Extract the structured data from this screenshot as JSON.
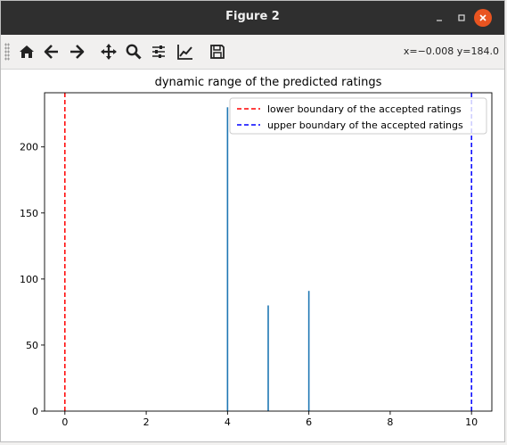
{
  "window": {
    "title": "Figure 2",
    "minimize_icon": "minimize-icon",
    "maximize_icon": "maximize-icon",
    "close_icon": "close-icon"
  },
  "toolbar": {
    "buttons": [
      {
        "name": "home-button",
        "icon": "home-icon"
      },
      {
        "name": "back-button",
        "icon": "arrow-left-icon"
      },
      {
        "name": "forward-button",
        "icon": "arrow-right-icon"
      },
      {
        "name": "pan-button",
        "icon": "move-icon"
      },
      {
        "name": "zoom-button",
        "icon": "magnifier-icon"
      },
      {
        "name": "configure-subplots-button",
        "icon": "sliders-icon"
      },
      {
        "name": "edit-axis-button",
        "icon": "chart-line-icon"
      },
      {
        "name": "save-button",
        "icon": "floppy-disk-icon"
      }
    ],
    "coordinates": "x=−0.008 y=184.0"
  },
  "chart_data": {
    "type": "bar",
    "title": "dynamic range of the predicted ratings",
    "xlabel": "",
    "ylabel": "",
    "xlim": [
      -0.5,
      10.5
    ],
    "ylim": [
      0,
      241
    ],
    "x_ticks": [
      0,
      2,
      4,
      6,
      8,
      10
    ],
    "y_ticks": [
      0,
      50,
      100,
      150,
      200
    ],
    "x_tick_labels": [
      "0",
      "2",
      "4",
      "6",
      "8",
      "10"
    ],
    "y_tick_labels": [
      "0",
      "50",
      "100",
      "150",
      "200"
    ],
    "bars": [
      {
        "x": 4,
        "value": 230
      },
      {
        "x": 5,
        "value": 80
      },
      {
        "x": 6,
        "value": 91
      }
    ],
    "bar_color": "#1f77b4",
    "vlines": [
      {
        "x": 0,
        "label": "lower boundary of the accepted ratings",
        "color": "#ff0000",
        "style": "dashed"
      },
      {
        "x": 10,
        "label": "upper boundary of the accepted ratings",
        "color": "#0000ff",
        "style": "dashed"
      }
    ],
    "legend_position": "upper right",
    "grid": false
  }
}
